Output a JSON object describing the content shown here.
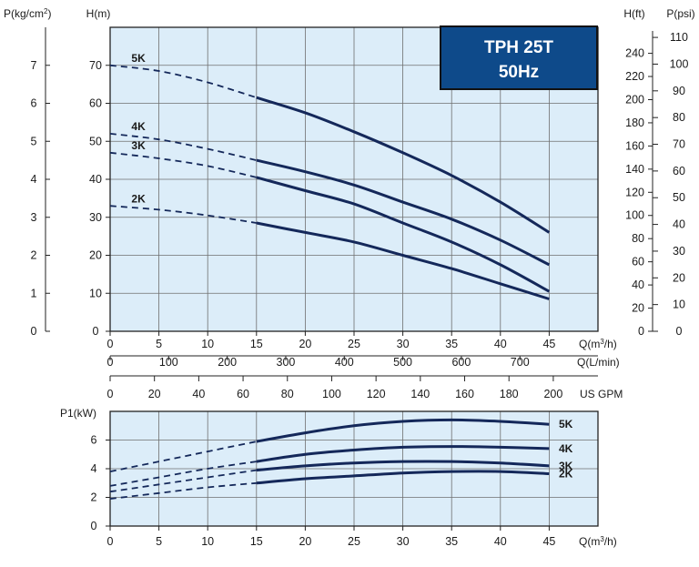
{
  "chart_data": [
    {
      "type": "line",
      "title": "TPH 25T",
      "subtitle": "50Hz",
      "colors": {
        "plot_bg": "#dcedf9",
        "grid": "#6f6f6f",
        "curve": "#14285a",
        "badge_bg": "#0e4a8a",
        "badge_border": "#111111"
      },
      "x": {
        "label": "Q(m³/h)",
        "range": [
          0,
          50
        ],
        "ticks": [
          0,
          5,
          10,
          15,
          20,
          25,
          30,
          35,
          40,
          45
        ],
        "tick_labels": [
          "0",
          "5",
          "10",
          "15",
          "20",
          "25",
          "30",
          "35",
          "40",
          "45"
        ]
      },
      "secondary_x": [
        {
          "label": "Q(L/min)",
          "range": [
            0,
            833.3
          ],
          "ticks": [
            0,
            100,
            200,
            300,
            400,
            500,
            600,
            700
          ],
          "tick_labels": [
            "0",
            "100",
            "200",
            "300",
            "400",
            "500",
            "600",
            "700"
          ]
        },
        {
          "label": "US GPM",
          "range": [
            0,
            220.1
          ],
          "ticks": [
            0,
            20,
            40,
            60,
            80,
            100,
            120,
            140,
            160,
            180,
            200
          ],
          "tick_labels": [
            "0",
            "20",
            "40",
            "60",
            "80",
            "100",
            "120",
            "140",
            "160",
            "180",
            "200"
          ]
        }
      ],
      "y": {
        "label": "H(m)",
        "range": [
          0,
          80
        ],
        "ticks": [
          0,
          10,
          20,
          30,
          40,
          50,
          60,
          70
        ],
        "tick_labels": [
          "0",
          "10",
          "20",
          "30",
          "40",
          "50",
          "60",
          "70"
        ]
      },
      "secondary_y": [
        {
          "label": "P(kg/cm²)",
          "side": "left",
          "range": [
            0,
            8
          ],
          "ticks": [
            0,
            1,
            2,
            3,
            4,
            5,
            6,
            7
          ],
          "tick_labels": [
            "0",
            "1",
            "2",
            "3",
            "4",
            "5",
            "6",
            "7"
          ]
        },
        {
          "label": "H(ft)",
          "side": "right",
          "range": [
            0,
            262.5
          ],
          "ticks": [
            0,
            20,
            40,
            60,
            80,
            100,
            120,
            140,
            160,
            180,
            200,
            220,
            240
          ],
          "tick_labels": [
            "0",
            "20",
            "40",
            "60",
            "80",
            "100",
            "120",
            "140",
            "160",
            "180",
            "200",
            "220",
            "240"
          ]
        },
        {
          "label": "P(psi)",
          "side": "right",
          "range": [
            0,
            113.8
          ],
          "ticks": [
            0,
            10,
            20,
            30,
            40,
            50,
            60,
            70,
            80,
            90,
            100,
            110
          ],
          "tick_labels": [
            "0",
            "10",
            "20",
            "30",
            "40",
            "50",
            "60",
            "70",
            "80",
            "90",
            "100",
            "110"
          ]
        }
      ],
      "grid": true,
      "dashed_until_x": 15,
      "series": [
        {
          "name": "5K",
          "x": [
            0,
            5,
            10,
            15,
            20,
            25,
            30,
            35,
            40,
            45
          ],
          "y": [
            70,
            68.5,
            65.5,
            61.5,
            57.5,
            52.5,
            47,
            41,
            34,
            26
          ]
        },
        {
          "name": "4K",
          "x": [
            0,
            5,
            10,
            15,
            20,
            25,
            30,
            35,
            40,
            45
          ],
          "y": [
            52,
            50.5,
            48,
            45,
            42,
            38.5,
            34,
            29.5,
            24,
            17.5
          ]
        },
        {
          "name": "3K",
          "x": [
            0,
            5,
            10,
            15,
            20,
            25,
            30,
            35,
            40,
            45
          ],
          "y": [
            47,
            45.5,
            43.5,
            40.5,
            37,
            33.5,
            28.5,
            23.5,
            17.5,
            10.5
          ]
        },
        {
          "name": "2K",
          "x": [
            0,
            5,
            10,
            15,
            20,
            25,
            30,
            35,
            40,
            45
          ],
          "y": [
            33,
            32,
            30.5,
            28.5,
            26,
            23.5,
            20,
            16.5,
            12.5,
            8.5
          ]
        }
      ]
    },
    {
      "type": "line",
      "x": {
        "label": "Q(m³/h)",
        "range": [
          0,
          50
        ],
        "ticks": [
          0,
          5,
          10,
          15,
          20,
          25,
          30,
          35,
          40,
          45
        ],
        "tick_labels": [
          "0",
          "5",
          "10",
          "15",
          "20",
          "25",
          "30",
          "35",
          "40",
          "45"
        ]
      },
      "y": {
        "label": "P1(kW)",
        "range": [
          0,
          8
        ],
        "ticks": [
          0,
          2,
          4,
          6
        ],
        "tick_labels": [
          "0",
          "2",
          "4",
          "6"
        ]
      },
      "grid": true,
      "dashed_until_x": 15,
      "series": [
        {
          "name": "5K",
          "x": [
            0,
            5,
            10,
            15,
            20,
            25,
            30,
            35,
            40,
            45
          ],
          "y": [
            3.8,
            4.5,
            5.2,
            5.9,
            6.5,
            7.0,
            7.3,
            7.4,
            7.3,
            7.1
          ]
        },
        {
          "name": "4K",
          "x": [
            0,
            5,
            10,
            15,
            20,
            25,
            30,
            35,
            40,
            45
          ],
          "y": [
            2.8,
            3.4,
            4.0,
            4.5,
            5.0,
            5.3,
            5.5,
            5.55,
            5.5,
            5.4
          ]
        },
        {
          "name": "3K",
          "x": [
            0,
            5,
            10,
            15,
            20,
            25,
            30,
            35,
            40,
            45
          ],
          "y": [
            2.4,
            2.9,
            3.4,
            3.9,
            4.2,
            4.4,
            4.5,
            4.5,
            4.4,
            4.2
          ]
        },
        {
          "name": "2K",
          "x": [
            0,
            5,
            10,
            15,
            20,
            25,
            30,
            35,
            40,
            45
          ],
          "y": [
            1.9,
            2.3,
            2.7,
            3.0,
            3.3,
            3.5,
            3.7,
            3.8,
            3.8,
            3.65
          ]
        }
      ]
    }
  ]
}
